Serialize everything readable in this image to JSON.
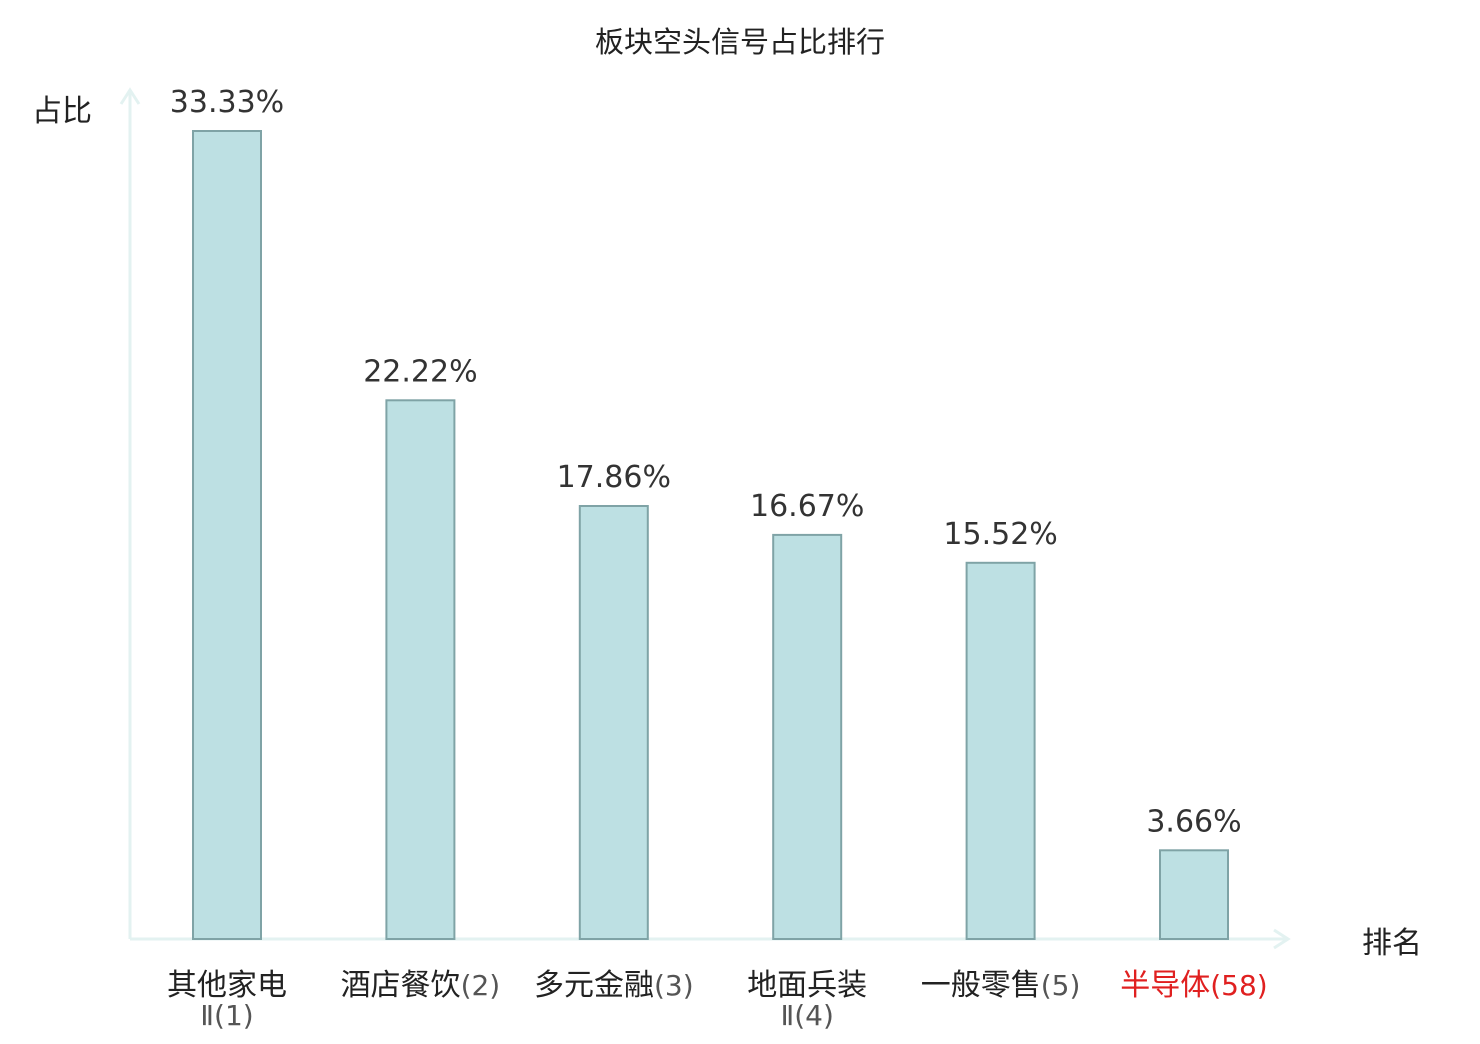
{
  "chart_data": {
    "type": "bar",
    "title": "板块空头信号占比排行",
    "ylabel": "占比",
    "xlabel": "排名",
    "ylim": [
      0,
      35
    ],
    "grid": false,
    "legend": "none",
    "categories": [
      {
        "name": "其他家电",
        "rank": "Ⅱ(1)",
        "value": 33.33,
        "label": "33.33%",
        "highlight": false
      },
      {
        "name": "酒店餐饮",
        "rank": "(2)",
        "value": 22.22,
        "label": "22.22%",
        "highlight": false
      },
      {
        "name": "多元金融",
        "rank": "(3)",
        "value": 17.86,
        "label": "17.86%",
        "highlight": false
      },
      {
        "name": "地面兵装",
        "rank": "Ⅱ(4)",
        "value": 16.67,
        "label": "16.67%",
        "highlight": false
      },
      {
        "name": "一般零售",
        "rank": "(5)",
        "value": 15.52,
        "label": "15.52%",
        "highlight": false
      },
      {
        "name": "半导体",
        "rank": "(58)",
        "value": 3.66,
        "label": "3.66%",
        "highlight": true
      }
    ],
    "colors": {
      "bar_fill": "#bde0e3",
      "bar_stroke": "#7fa3a6",
      "axis": "#e3f2f1",
      "text": "#222222",
      "highlight": "#e02020"
    }
  }
}
